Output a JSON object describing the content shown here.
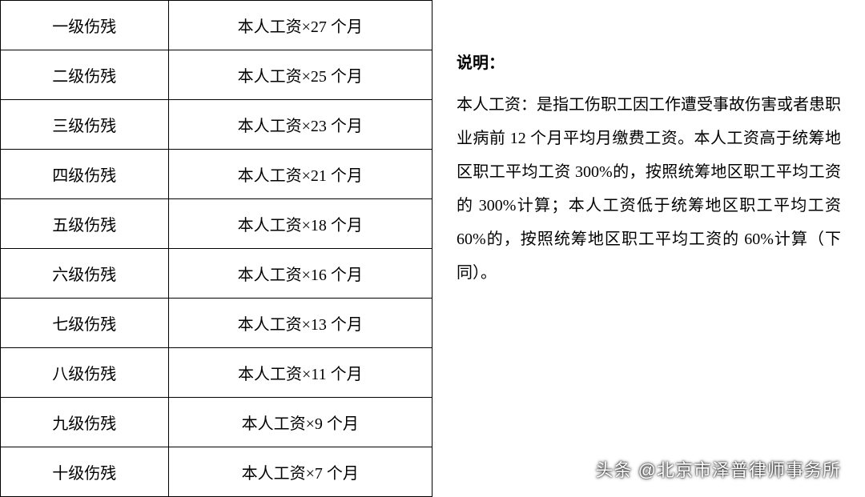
{
  "table": {
    "rows": [
      {
        "level": "一级伤残",
        "calc": "本人工资×27 个月"
      },
      {
        "level": "二级伤残",
        "calc": "本人工资×25 个月"
      },
      {
        "level": "三级伤残",
        "calc": "本人工资×23 个月"
      },
      {
        "level": "四级伤残",
        "calc": "本人工资×21 个月"
      },
      {
        "level": "五级伤残",
        "calc": "本人工资×18 个月"
      },
      {
        "level": "六级伤残",
        "calc": "本人工资×16 个月"
      },
      {
        "level": "七级伤残",
        "calc": "本人工资×13 个月"
      },
      {
        "level": "八级伤残",
        "calc": "本人工资×11 个月"
      },
      {
        "level": "九级伤残",
        "calc": "本人工资×9 个月"
      },
      {
        "level": "十级伤残",
        "calc": "本人工资×7 个月"
      }
    ]
  },
  "explanation": {
    "title": "说明：",
    "body": "本人工资：是指工伤职工因工作遭受事故伤害或者患职业病前 12 个月平均月缴费工资。本人工资高于统筹地区职工平均工资 300%的，按照统筹地区职工平均工资的 300%计算；本人工资低于统筹地区职工平均工资 60%的，按照统筹地区职工平均工资的 60%计算（下同）。"
  },
  "watermark": "头条 @北京市泽普律师事务所",
  "colors": {
    "border": "#000000",
    "text": "#000000",
    "background": "#ffffff"
  },
  "typography": {
    "font_family": "SimSun",
    "cell_fontsize": 20,
    "explanation_fontsize": 20,
    "line_height": 2.1
  }
}
